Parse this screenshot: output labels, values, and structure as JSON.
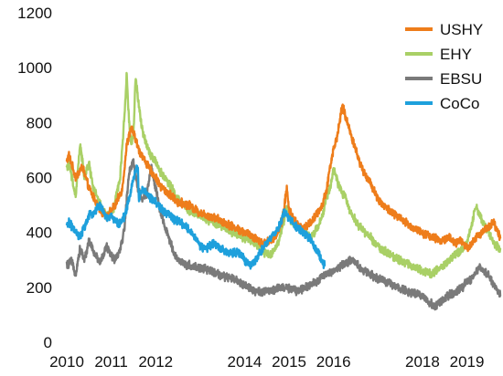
{
  "chart_data": {
    "type": "line",
    "title": "",
    "xlabel": "",
    "ylabel": "",
    "xlim": [
      2010,
      2019.75
    ],
    "ylim": [
      0,
      1200
    ],
    "y_ticks": [
      0,
      200,
      400,
      600,
      800,
      1000,
      1200
    ],
    "y_tick_labels": [
      "0",
      "200",
      "400",
      "600",
      "800",
      "1000",
      "1200"
    ],
    "x_ticks": [
      2010,
      2011,
      2012,
      2014,
      2015,
      2016,
      2018,
      2019
    ],
    "x_tick_labels": [
      "2010",
      "2011",
      "2012",
      "2014",
      "2015",
      "2016",
      "2018",
      "2019"
    ],
    "grid": false,
    "legend_position": "top-right",
    "series": [
      {
        "name": "USHY",
        "color": "#ee7d1b",
        "x": [
          2010.0,
          2010.05,
          2010.2,
          2010.35,
          2010.5,
          2010.6,
          2010.75,
          2010.9,
          2011.1,
          2011.25,
          2011.35,
          2011.45,
          2011.55,
          2011.62,
          2011.7,
          2011.8,
          2011.9,
          2012.0,
          2012.1,
          2012.3,
          2012.5,
          2012.75,
          2013.0,
          2013.25,
          2013.5,
          2013.75,
          2014.0,
          2014.25,
          2014.4,
          2014.6,
          2014.75,
          2014.85,
          2014.95,
          2015.0,
          2015.1,
          2015.2,
          2015.3,
          2015.45,
          2015.6,
          2015.75,
          2015.85,
          2015.92,
          2016.0,
          2016.08,
          2016.2,
          2016.35,
          2016.5,
          2016.6,
          2016.75,
          2016.9,
          2017.0,
          2017.25,
          2017.5,
          2017.75,
          2018.0,
          2018.25,
          2018.4,
          2018.6,
          2018.75,
          2018.9,
          2019.0,
          2019.1,
          2019.2,
          2019.35,
          2019.5,
          2019.6,
          2019.75
        ],
        "y": [
          660,
          680,
          600,
          640,
          560,
          530,
          480,
          460,
          500,
          560,
          720,
          780,
          740,
          700,
          680,
          650,
          620,
          600,
          570,
          540,
          510,
          500,
          470,
          460,
          440,
          420,
          400,
          380,
          360,
          370,
          400,
          450,
          560,
          480,
          450,
          430,
          410,
          430,
          460,
          500,
          560,
          640,
          700,
          750,
          860,
          780,
          700,
          650,
          600,
          560,
          520,
          480,
          450,
          420,
          400,
          380,
          370,
          380,
          360,
          370,
          340,
          360,
          380,
          400,
          420,
          440,
          380
        ]
      },
      {
        "name": "EHY",
        "color": "#a9d066",
        "x": [
          2010.0,
          2010.05,
          2010.2,
          2010.3,
          2010.4,
          2010.5,
          2010.6,
          2010.75,
          2010.9,
          2011.05,
          2011.2,
          2011.3,
          2011.35,
          2011.4,
          2011.45,
          2011.5,
          2011.55,
          2011.62,
          2011.7,
          2011.8,
          2011.9,
          2012.0,
          2012.1,
          2012.3,
          2012.5,
          2012.75,
          2013.0,
          2013.25,
          2013.5,
          2013.75,
          2014.0,
          2014.25,
          2014.4,
          2014.6,
          2014.75,
          2014.85,
          2014.95,
          2015.05,
          2015.2,
          2015.35,
          2015.5,
          2015.65,
          2015.75,
          2015.85,
          2015.92,
          2016.0,
          2016.1,
          2016.25,
          2016.4,
          2016.55,
          2016.7,
          2016.85,
          2017.0,
          2017.25,
          2017.5,
          2017.75,
          2018.0,
          2018.2,
          2018.4,
          2018.6,
          2018.75,
          2018.9,
          2019.0,
          2019.1,
          2019.2,
          2019.35,
          2019.5,
          2019.6,
          2019.75
        ],
        "y": [
          640,
          650,
          530,
          720,
          600,
          650,
          560,
          500,
          460,
          480,
          600,
          830,
          980,
          800,
          720,
          760,
          970,
          860,
          770,
          720,
          680,
          660,
          620,
          580,
          520,
          480,
          460,
          440,
          420,
          400,
          380,
          360,
          330,
          320,
          360,
          420,
          490,
          440,
          420,
          400,
          380,
          420,
          460,
          530,
          560,
          630,
          580,
          530,
          470,
          430,
          400,
          380,
          350,
          320,
          300,
          280,
          260,
          250,
          270,
          300,
          320,
          340,
          360,
          420,
          500,
          440,
          400,
          360,
          340
        ]
      },
      {
        "name": "EBSU",
        "color": "#7a7a7a",
        "x": [
          2010.0,
          2010.1,
          2010.2,
          2010.3,
          2010.4,
          2010.5,
          2010.6,
          2010.75,
          2010.9,
          2011.05,
          2011.2,
          2011.3,
          2011.4,
          2011.5,
          2011.6,
          2011.7,
          2011.8,
          2011.9,
          2012.0,
          2012.1,
          2012.2,
          2012.3,
          2012.4,
          2012.5,
          2012.6,
          2012.75,
          2013.0,
          2013.25,
          2013.5,
          2013.75,
          2014.0,
          2014.2,
          2014.4,
          2014.6,
          2014.8,
          2015.0,
          2015.2,
          2015.4,
          2015.6,
          2015.8,
          2016.0,
          2016.2,
          2016.4,
          2016.6,
          2016.8,
          2017.0,
          2017.2,
          2017.4,
          2017.6,
          2017.8,
          2018.0,
          2018.1,
          2018.3,
          2018.5,
          2018.7,
          2018.9,
          2019.0,
          2019.1,
          2019.2,
          2019.3,
          2019.5,
          2019.65,
          2019.75
        ],
        "y": [
          280,
          295,
          250,
          340,
          300,
          370,
          330,
          290,
          350,
          300,
          330,
          420,
          620,
          660,
          560,
          520,
          540,
          640,
          560,
          480,
          420,
          380,
          330,
          300,
          290,
          280,
          270,
          260,
          240,
          230,
          210,
          190,
          180,
          190,
          200,
          195,
          185,
          205,
          220,
          245,
          260,
          280,
          300,
          270,
          250,
          230,
          220,
          200,
          190,
          180,
          170,
          150,
          130,
          160,
          180,
          200,
          220,
          230,
          260,
          270,
          240,
          200,
          170
        ]
      },
      {
        "name": "CoCo",
        "color": "#1ea0dc",
        "x": [
          2010.0,
          2010.05,
          2010.15,
          2010.3,
          2010.4,
          2010.5,
          2010.6,
          2010.75,
          2010.9,
          2011.0,
          2011.1,
          2011.2,
          2011.3,
          2011.4,
          2011.5,
          2011.6,
          2011.62,
          2011.7,
          2011.8,
          2011.9,
          2012.0,
          2012.1,
          2012.25,
          2012.4,
          2012.6,
          2012.75,
          2012.9,
          2013.0,
          2013.15,
          2013.3,
          2013.5,
          2013.7,
          2013.85,
          2014.0,
          2014.15,
          2014.25,
          2014.4,
          2014.55,
          2014.7,
          2014.8,
          2014.9,
          2015.0,
          2015.1,
          2015.25,
          2015.4,
          2015.5,
          2015.6,
          2015.7,
          2015.8
        ],
        "y": [
          420,
          440,
          410,
          380,
          420,
          460,
          470,
          500,
          450,
          460,
          440,
          430,
          460,
          520,
          600,
          640,
          520,
          560,
          540,
          520,
          510,
          490,
          470,
          450,
          430,
          410,
          380,
          350,
          340,
          360,
          340,
          320,
          330,
          300,
          280,
          300,
          340,
          370,
          400,
          430,
          480,
          450,
          430,
          410,
          390,
          370,
          340,
          310,
          280
        ]
      }
    ]
  }
}
